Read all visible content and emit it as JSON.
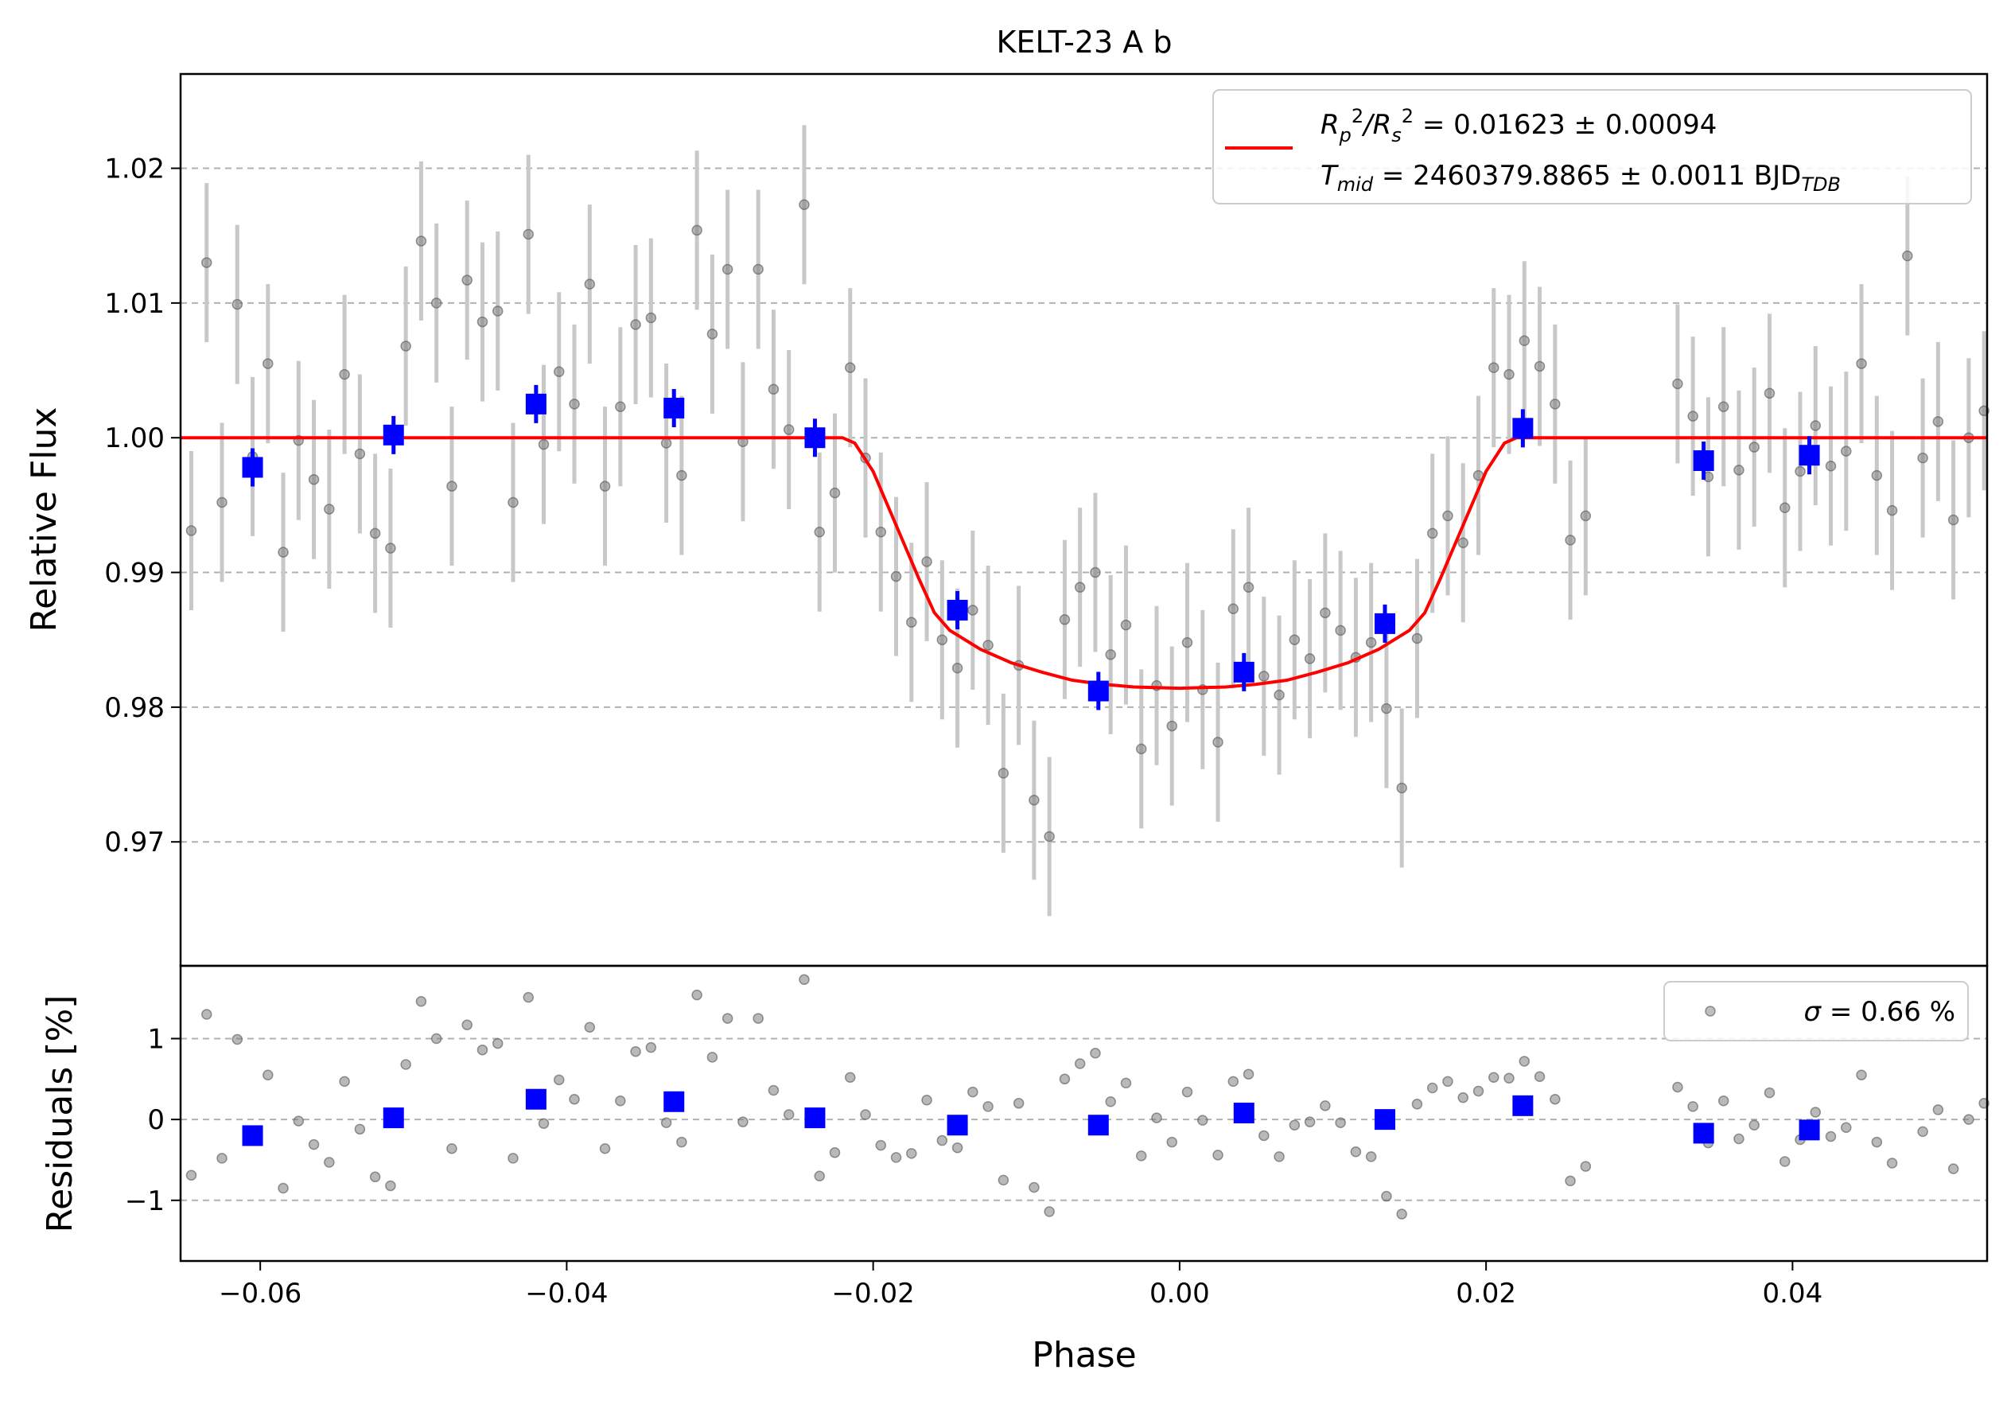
{
  "chart_data": [
    {
      "panel": "main",
      "type": "scatter",
      "title": "KELT-23 A b",
      "xlabel": "Phase",
      "ylabel": "Relative Flux",
      "xlim": [
        -0.0652,
        0.0527
      ],
      "ylim": [
        0.9608,
        1.027
      ],
      "yticks": [
        "0.97",
        "0.98",
        "0.99",
        "1.00",
        "1.01",
        "1.02"
      ],
      "ytick_values": [
        0.97,
        0.98,
        0.99,
        1.0,
        1.01,
        1.02
      ],
      "grid": "horizontal dashed",
      "legend_position": "top-right",
      "legend": {
        "line1_prefix": "R",
        "line1_value": " = 0.01623 ± 0.00094",
        "line2_prefix": "T",
        "line2_sub": "mid",
        "line2_value": " = 2460379.8865 ± 0.0011 BJD",
        "line2_unit_sub": "TDB"
      },
      "model": {
        "name": "transit model",
        "color": "#ff0000",
        "x": [
          -0.0652,
          -0.022,
          -0.0212,
          -0.02,
          -0.0185,
          -0.017,
          -0.016,
          -0.015,
          -0.013,
          -0.011,
          -0.009,
          -0.007,
          -0.005,
          -0.003,
          0.0,
          0.003,
          0.005,
          0.007,
          0.009,
          0.011,
          0.013,
          0.015,
          0.016,
          0.017,
          0.0185,
          0.02,
          0.0212,
          0.022,
          0.0527
        ],
        "y": [
          1.0,
          1.0,
          0.9996,
          0.9975,
          0.9935,
          0.9895,
          0.987,
          0.9857,
          0.9843,
          0.9833,
          0.9826,
          0.982,
          0.9817,
          0.9815,
          0.9814,
          0.9815,
          0.9817,
          0.982,
          0.9826,
          0.9833,
          0.9843,
          0.9857,
          0.987,
          0.9895,
          0.9935,
          0.9975,
          0.9996,
          1.0,
          1.0
        ]
      },
      "binned": {
        "name": "binned data",
        "color": "#0000ff",
        "x": [
          -0.0605,
          -0.0513,
          -0.042,
          -0.033,
          -0.0238,
          -0.0145,
          -0.0053,
          0.0042,
          0.0134,
          0.0224,
          0.0342,
          0.0411
        ],
        "y": [
          0.9978,
          1.0002,
          1.0025,
          1.0022,
          1.0,
          0.9872,
          0.9812,
          0.9826,
          0.9862,
          1.0007,
          0.9983,
          0.9987
        ]
      },
      "raw": {
        "name": "data",
        "color": "#808080",
        "x": [
          -0.0645,
          -0.0635,
          -0.0625,
          -0.0615,
          -0.0605,
          -0.0595,
          -0.0585,
          -0.0575,
          -0.0565,
          -0.0555,
          -0.0545,
          -0.0535,
          -0.0525,
          -0.0515,
          -0.0505,
          -0.0495,
          -0.0485,
          -0.0475,
          -0.0465,
          -0.0455,
          -0.0445,
          -0.0435,
          -0.0425,
          -0.0415,
          -0.0405,
          -0.0395,
          -0.0385,
          -0.0375,
          -0.0365,
          -0.0355,
          -0.0345,
          -0.0335,
          -0.0325,
          -0.0315,
          -0.0305,
          -0.0295,
          -0.0285,
          -0.0275,
          -0.0265,
          -0.0255,
          -0.0245,
          -0.0235,
          -0.0225,
          -0.0215,
          -0.0205,
          -0.0195,
          -0.0185,
          -0.0175,
          -0.0165,
          -0.0155,
          -0.0145,
          -0.0135,
          -0.0125,
          -0.0115,
          -0.0105,
          -0.0095,
          -0.0085,
          -0.0075,
          -0.0065,
          -0.0055,
          -0.0045,
          -0.0035,
          -0.0025,
          -0.0015,
          -0.0005,
          0.0005,
          0.0015,
          0.0025,
          0.0035,
          0.0045,
          0.0055,
          0.0065,
          0.0075,
          0.0085,
          0.0095,
          0.0105,
          0.0115,
          0.0125,
          0.0135,
          0.0145,
          0.0155,
          0.0165,
          0.0175,
          0.0185,
          0.0195,
          0.0205,
          0.0215,
          0.0225,
          0.0235,
          0.0245,
          0.0255,
          0.0265,
          0.0325,
          0.0335,
          0.0345,
          0.0355,
          0.0365,
          0.0375,
          0.0385,
          0.0395,
          0.0405,
          0.0415,
          0.0425,
          0.0435,
          0.0445,
          0.0455,
          0.0465,
          0.0475,
          0.0485,
          0.0495,
          0.0505,
          0.0515,
          0.0525
        ],
        "y": [
          0.9931,
          1.013,
          0.9952,
          1.0099,
          0.9986,
          1.0055,
          0.9915,
          0.9998,
          0.9969,
          0.9947,
          1.0047,
          0.9988,
          0.9929,
          0.9918,
          1.0068,
          1.0146,
          1.01,
          0.9964,
          1.0117,
          1.0086,
          1.0094,
          0.9952,
          1.0151,
          0.9995,
          1.0049,
          1.0025,
          1.0114,
          0.9964,
          1.0023,
          1.0084,
          1.0089,
          0.9996,
          0.9972,
          1.0154,
          1.0077,
          1.0125,
          0.9997,
          1.0125,
          1.0036,
          1.0006,
          1.0173,
          0.993,
          0.9959,
          1.0052,
          0.9985,
          0.993,
          0.9897,
          0.9863,
          0.9908,
          0.985,
          0.9829,
          0.9872,
          0.9846,
          0.9751,
          0.9831,
          0.9731,
          0.9704,
          0.9865,
          0.9889,
          0.99,
          0.9839,
          0.9861,
          0.9769,
          0.9816,
          0.9786,
          0.9848,
          0.9813,
          0.9774,
          0.9873,
          0.9889,
          0.9823,
          0.9809,
          0.985,
          0.9836,
          0.987,
          0.9857,
          0.9837,
          0.9848,
          0.9799,
          0.974,
          0.9851,
          0.9929,
          0.9942,
          0.9922,
          0.9972,
          1.0052,
          1.0047,
          1.0072,
          1.0053,
          1.0025,
          0.9924,
          0.9942,
          1.004,
          1.0016,
          0.9971,
          1.0023,
          0.9976,
          0.9993,
          1.0033,
          0.9948,
          0.9975,
          1.0009,
          0.9979,
          0.999,
          1.0055,
          0.9972,
          0.9946,
          1.0135,
          0.9985,
          1.0012,
          0.9939,
          1.0,
          1.002
        ]
      }
    },
    {
      "panel": "residuals",
      "type": "scatter",
      "xlabel": "Phase",
      "ylabel": "Residuals [%]",
      "xlim": [
        -0.0652,
        0.0527
      ],
      "ylim": [
        -1.75,
        1.9
      ],
      "yticks": [
        "−1",
        "0",
        "1"
      ],
      "ytick_values": [
        -1,
        0,
        1
      ],
      "xticks": [
        "−0.06",
        "−0.04",
        "−0.02",
        "0.00",
        "0.02",
        "0.04"
      ],
      "xtick_values": [
        -0.06,
        -0.04,
        -0.02,
        0.0,
        0.02,
        0.04
      ],
      "grid": "horizontal dashed",
      "legend_position": "top-right",
      "legend": {
        "sigma_symbol": "σ",
        "sigma_value": " = 0.66 %"
      },
      "binned": {
        "x": [
          -0.0605,
          -0.0513,
          -0.042,
          -0.033,
          -0.0238,
          -0.0145,
          -0.0053,
          0.0042,
          0.0134,
          0.0224,
          0.0342,
          0.0411
        ],
        "y": [
          -0.2,
          0.02,
          0.25,
          0.22,
          0.02,
          -0.07,
          -0.07,
          0.08,
          0.0,
          0.17,
          -0.17,
          -0.13
        ]
      },
      "raw": {
        "x": [
          -0.0645,
          -0.0635,
          -0.0625,
          -0.0615,
          -0.0605,
          -0.0595,
          -0.0585,
          -0.0575,
          -0.0565,
          -0.0555,
          -0.0545,
          -0.0535,
          -0.0525,
          -0.0515,
          -0.0505,
          -0.0495,
          -0.0485,
          -0.0475,
          -0.0465,
          -0.0455,
          -0.0445,
          -0.0435,
          -0.0425,
          -0.0415,
          -0.0405,
          -0.0395,
          -0.0385,
          -0.0375,
          -0.0365,
          -0.0355,
          -0.0345,
          -0.0335,
          -0.0325,
          -0.0315,
          -0.0305,
          -0.0295,
          -0.0285,
          -0.0275,
          -0.0265,
          -0.0255,
          -0.0245,
          -0.0235,
          -0.0225,
          -0.0215,
          -0.0205,
          -0.0195,
          -0.0185,
          -0.0175,
          -0.0165,
          -0.0155,
          -0.0145,
          -0.0135,
          -0.0125,
          -0.0115,
          -0.0105,
          -0.0095,
          -0.0085,
          -0.0075,
          -0.0065,
          -0.0055,
          -0.0045,
          -0.0035,
          -0.0025,
          -0.0015,
          -0.0005,
          0.0005,
          0.0015,
          0.0025,
          0.0035,
          0.0045,
          0.0055,
          0.0065,
          0.0075,
          0.0085,
          0.0095,
          0.0105,
          0.0115,
          0.0125,
          0.0135,
          0.0145,
          0.0155,
          0.0165,
          0.0175,
          0.0185,
          0.0195,
          0.0205,
          0.0215,
          0.0225,
          0.0235,
          0.0245,
          0.0255,
          0.0265,
          0.0325,
          0.0335,
          0.0345,
          0.0355,
          0.0365,
          0.0375,
          0.0385,
          0.0395,
          0.0405,
          0.0415,
          0.0425,
          0.0435,
          0.0445,
          0.0455,
          0.0465,
          0.0475,
          0.0485,
          0.0495,
          0.0505,
          0.0515,
          0.0525
        ],
        "y": [
          -0.69,
          1.3,
          -0.48,
          0.99,
          -0.14,
          0.55,
          -0.85,
          -0.02,
          -0.31,
          -0.53,
          0.47,
          -0.12,
          -0.71,
          -0.82,
          0.68,
          1.46,
          1.0,
          -0.36,
          1.17,
          0.86,
          0.94,
          -0.48,
          1.51,
          -0.05,
          0.49,
          0.25,
          1.14,
          -0.36,
          0.23,
          0.84,
          0.89,
          -0.04,
          -0.28,
          1.54,
          0.77,
          1.25,
          -0.03,
          1.25,
          0.36,
          0.06,
          1.73,
          -0.7,
          -0.41,
          0.52,
          0.06,
          -0.32,
          -0.47,
          -0.42,
          0.24,
          -0.26,
          -0.35,
          0.34,
          0.16,
          -0.75,
          0.2,
          -0.84,
          -1.14,
          0.5,
          0.69,
          0.82,
          0.22,
          0.45,
          -0.45,
          0.02,
          -0.28,
          0.34,
          -0.01,
          -0.44,
          0.47,
          0.56,
          -0.2,
          -0.46,
          -0.07,
          -0.03,
          0.17,
          -0.04,
          -0.4,
          -0.46,
          -0.95,
          -1.17,
          0.19,
          0.39,
          0.47,
          0.27,
          0.35,
          0.52,
          0.51,
          0.72,
          0.53,
          0.25,
          -0.76,
          -0.58,
          0.4,
          0.16,
          -0.29,
          0.23,
          -0.24,
          -0.07,
          0.33,
          -0.52,
          -0.25,
          0.09,
          -0.21,
          -0.1,
          0.55,
          -0.28,
          -0.54,
          1.35,
          -0.15,
          0.12,
          -0.61,
          0.0,
          0.2
        ]
      }
    }
  ]
}
